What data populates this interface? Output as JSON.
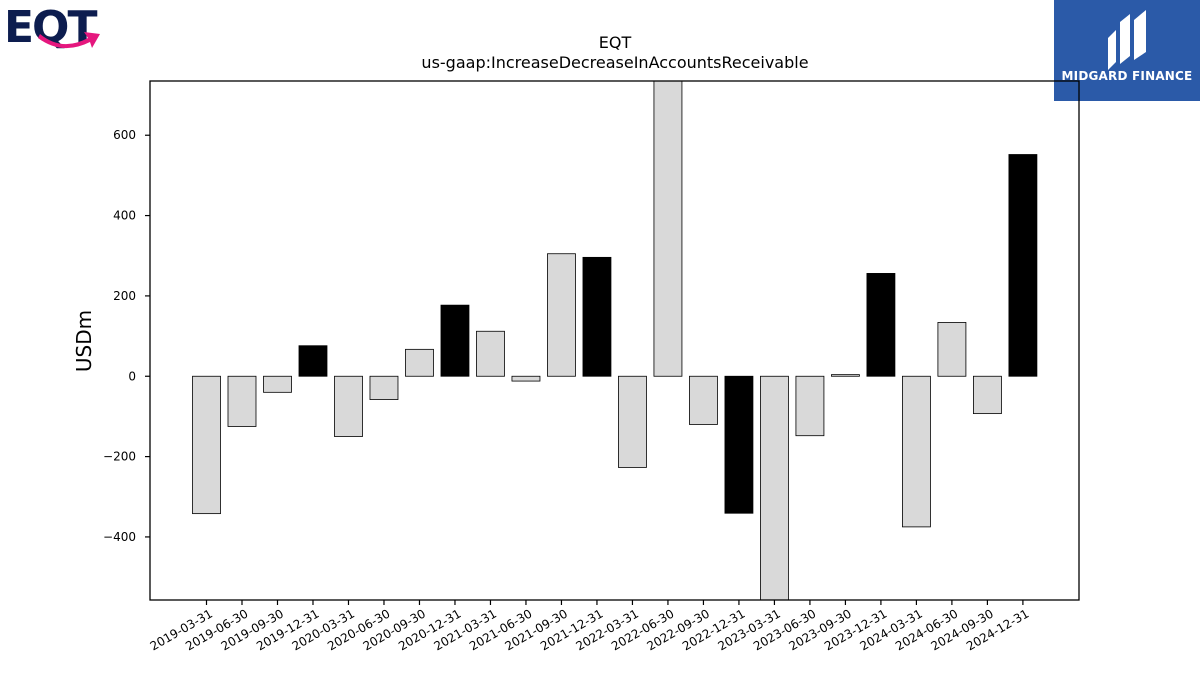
{
  "logos": {
    "left_text": "EQT",
    "right_text": "MIDGARD FINANCE",
    "right_bg": "#2b5aa8",
    "left_primary": "#0d1d4f",
    "left_accent": "#e5177e"
  },
  "chart_data": {
    "type": "bar",
    "title": "EQT",
    "subtitle": "us-gaap:IncreaseDecreaseInAccountsReceivable",
    "xlabel": "",
    "ylabel": "USDm",
    "ylim": [
      -557,
      735
    ],
    "yticks": [
      -400,
      -200,
      0,
      200,
      400,
      600
    ],
    "grid": false,
    "colors": {
      "quarter": "#d9d9d9",
      "year_end": "#000000",
      "edge": "#000000"
    },
    "categories": [
      "2019-03-31",
      "2019-06-30",
      "2019-09-30",
      "2019-12-31",
      "2020-03-31",
      "2020-06-30",
      "2020-09-30",
      "2020-12-31",
      "2021-03-31",
      "2021-06-30",
      "2021-09-30",
      "2021-12-31",
      "2022-03-31",
      "2022-06-30",
      "2022-09-30",
      "2022-12-31",
      "2023-03-31",
      "2023-06-30",
      "2023-09-30",
      "2023-12-31",
      "2024-03-31",
      "2024-06-30",
      "2024-09-30",
      "2024-12-31"
    ],
    "values": [
      -342,
      -125,
      -40,
      76,
      -150,
      -58,
      67,
      177,
      112,
      -12,
      305,
      296,
      -227,
      760,
      -120,
      -341,
      -600,
      -148,
      4,
      256,
      -375,
      134,
      -93,
      552
    ],
    "year_end": [
      false,
      false,
      false,
      true,
      false,
      false,
      false,
      true,
      false,
      false,
      false,
      true,
      false,
      false,
      false,
      true,
      false,
      false,
      false,
      true,
      false,
      false,
      false,
      true
    ]
  }
}
